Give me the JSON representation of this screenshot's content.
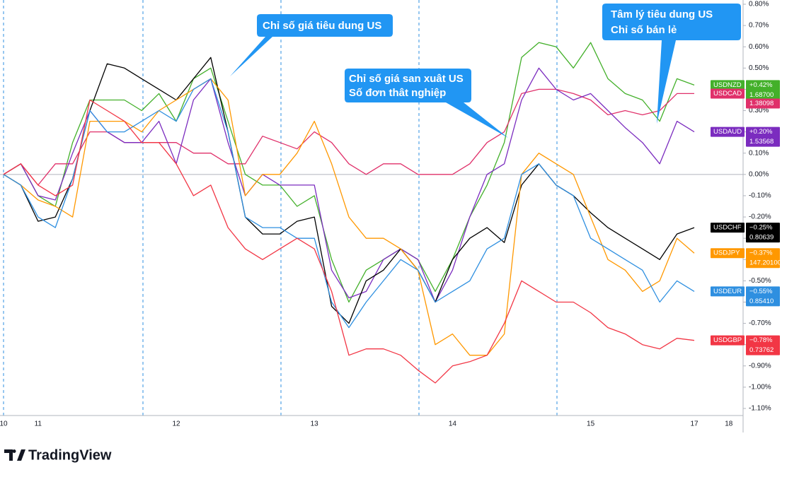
{
  "chart_data": {
    "type": "line",
    "brand": "TradingView",
    "categories": [
      "10",
      null,
      "11",
      null,
      null,
      null,
      null,
      null,
      null,
      null,
      "12",
      null,
      null,
      null,
      null,
      null,
      null,
      null,
      "13",
      null,
      null,
      null,
      null,
      null,
      null,
      null,
      "14",
      null,
      null,
      null,
      null,
      null,
      null,
      null,
      "15",
      null,
      null,
      null,
      null,
      null,
      "17",
      null,
      "18"
    ],
    "ylim": [
      -1.1,
      0.8
    ],
    "yticks": [
      {
        "value": 0.8,
        "label": "0.80%"
      },
      {
        "value": 0.7,
        "label": "0.70%"
      },
      {
        "value": 0.6,
        "label": "0.60%"
      },
      {
        "value": 0.5,
        "label": "0.50%"
      },
      {
        "value": 0.4,
        "label": "0.40%"
      },
      {
        "value": 0.3,
        "label": "0.30%"
      },
      {
        "value": 0.2,
        "label": "0.20%"
      },
      {
        "value": 0.1,
        "label": "0.10%"
      },
      {
        "value": 0.0,
        "label": "0.00%"
      },
      {
        "value": -0.1,
        "label": "-0.10%"
      },
      {
        "value": -0.2,
        "label": "-0.20%"
      },
      {
        "value": -0.3,
        "label": "-0.30%"
      },
      {
        "value": -0.4,
        "label": "-0.40%"
      },
      {
        "value": -0.5,
        "label": "-0.50%"
      },
      {
        "value": -0.6,
        "label": "-0.60%"
      },
      {
        "value": -0.7,
        "label": "-0.70%"
      },
      {
        "value": -0.8,
        "label": "-0.80%"
      },
      {
        "value": -0.9,
        "label": "-0.90%"
      },
      {
        "value": -1.0,
        "label": "-1.00%"
      },
      {
        "value": -1.1,
        "label": "-1.10%"
      }
    ],
    "annotations": [
      [
        "Chỉ số giá tiêu dung US"
      ],
      [
        "Chỉ số giá san xuât US",
        "Số đơn thât nghiệp"
      ],
      [
        "Tâm lý tiêu dung US",
        "Chỉ số bán lẻ"
      ]
    ],
    "series": [
      {
        "name": "USDNZD",
        "change": "+0.42%",
        "price": "1.68700",
        "color": "#43b02a",
        "values": [
          0.0,
          0.05,
          -0.1,
          -0.15,
          0.15,
          0.35,
          0.35,
          0.35,
          0.3,
          0.38,
          0.25,
          0.45,
          0.5,
          0.25,
          0.0,
          -0.05,
          -0.05,
          -0.15,
          -0.1,
          -0.4,
          -0.6,
          -0.45,
          -0.4,
          -0.35,
          -0.4,
          -0.55,
          -0.4,
          -0.2,
          -0.05,
          0.15,
          0.55,
          0.62,
          0.6,
          0.5,
          0.62,
          0.45,
          0.38,
          0.35,
          0.25,
          0.45,
          0.42,
          null,
          null
        ]
      },
      {
        "name": "USDCAD",
        "price": "1.38098",
        "color": "#e0306a",
        "values": [
          0.0,
          0.05,
          -0.05,
          0.05,
          0.05,
          0.2,
          0.2,
          0.15,
          0.15,
          0.15,
          0.15,
          0.1,
          0.1,
          0.05,
          0.05,
          0.18,
          0.15,
          0.12,
          0.2,
          0.15,
          0.05,
          0.0,
          0.05,
          0.05,
          0.0,
          0.0,
          0.0,
          0.05,
          0.15,
          0.2,
          0.38,
          0.4,
          0.4,
          0.38,
          0.35,
          0.28,
          0.3,
          0.28,
          0.3,
          0.38,
          0.38,
          null,
          null
        ]
      },
      {
        "name": "USDAUD",
        "change": "+0.20%",
        "price": "1.53568",
        "color": "#7b2cbf",
        "values": [
          0.0,
          0.05,
          -0.1,
          -0.12,
          0.1,
          0.3,
          0.2,
          0.15,
          0.15,
          0.25,
          0.05,
          0.35,
          0.45,
          0.15,
          -0.1,
          0.0,
          -0.05,
          -0.05,
          -0.05,
          -0.45,
          -0.58,
          -0.55,
          -0.4,
          -0.35,
          -0.4,
          -0.6,
          -0.45,
          -0.2,
          0.0,
          0.05,
          0.35,
          0.5,
          0.4,
          0.35,
          0.38,
          0.3,
          0.22,
          0.15,
          0.05,
          0.25,
          0.2,
          null,
          null
        ]
      },
      {
        "name": "USDCHF",
        "change": "−0.25%",
        "price": "0.80639",
        "color": "#000000",
        "values": [
          0.0,
          -0.05,
          -0.22,
          -0.2,
          -0.02,
          0.3,
          0.52,
          0.5,
          0.45,
          0.4,
          0.35,
          0.45,
          0.55,
          0.2,
          -0.2,
          -0.28,
          -0.28,
          -0.22,
          -0.2,
          -0.62,
          -0.7,
          -0.5,
          -0.45,
          -0.35,
          -0.45,
          -0.6,
          -0.4,
          -0.3,
          -0.25,
          -0.32,
          -0.05,
          0.05,
          -0.05,
          -0.1,
          -0.18,
          -0.25,
          -0.3,
          -0.35,
          -0.4,
          -0.28,
          -0.25,
          null,
          null
        ]
      },
      {
        "name": "USDJPY",
        "change": "−0.37%",
        "price": "147.20100",
        "color": "#ff9800",
        "values": [
          0.0,
          -0.05,
          -0.12,
          -0.15,
          -0.2,
          0.25,
          0.25,
          0.25,
          0.2,
          0.3,
          0.35,
          0.4,
          0.45,
          0.35,
          -0.1,
          0.0,
          0.0,
          0.1,
          0.25,
          0.05,
          -0.2,
          -0.3,
          -0.3,
          -0.35,
          -0.45,
          -0.8,
          -0.75,
          -0.85,
          -0.85,
          -0.75,
          0.0,
          0.1,
          0.05,
          0.0,
          -0.2,
          -0.4,
          -0.45,
          -0.55,
          -0.5,
          -0.3,
          -0.37,
          null,
          null
        ]
      },
      {
        "name": "USDEUR",
        "change": "−0.55%",
        "price": "0.85410",
        "color": "#2e8fe0",
        "values": [
          0.0,
          -0.05,
          -0.2,
          -0.25,
          -0.02,
          0.3,
          0.2,
          0.2,
          0.25,
          0.3,
          0.25,
          0.4,
          0.45,
          0.2,
          -0.2,
          -0.25,
          -0.25,
          -0.3,
          -0.3,
          -0.6,
          -0.72,
          -0.6,
          -0.5,
          -0.4,
          -0.45,
          -0.6,
          -0.55,
          -0.5,
          -0.35,
          -0.3,
          0.0,
          0.05,
          -0.05,
          -0.1,
          -0.3,
          -0.35,
          -0.4,
          -0.45,
          -0.6,
          -0.5,
          -0.55,
          null,
          null
        ]
      },
      {
        "name": "USDGBP",
        "change": "−0.78%",
        "price": "0.73762",
        "color": "#f23645",
        "values": [
          0.0,
          0.05,
          -0.05,
          -0.1,
          -0.05,
          0.35,
          0.3,
          0.25,
          0.15,
          0.15,
          0.05,
          -0.1,
          -0.05,
          -0.25,
          -0.35,
          -0.4,
          -0.35,
          -0.3,
          -0.35,
          -0.55,
          -0.85,
          -0.82,
          -0.82,
          -0.85,
          -0.92,
          -0.98,
          -0.9,
          -0.88,
          -0.85,
          -0.7,
          -0.5,
          -0.55,
          -0.6,
          -0.6,
          -0.65,
          -0.72,
          -0.75,
          -0.8,
          -0.82,
          -0.77,
          -0.78,
          null,
          null
        ]
      }
    ]
  }
}
